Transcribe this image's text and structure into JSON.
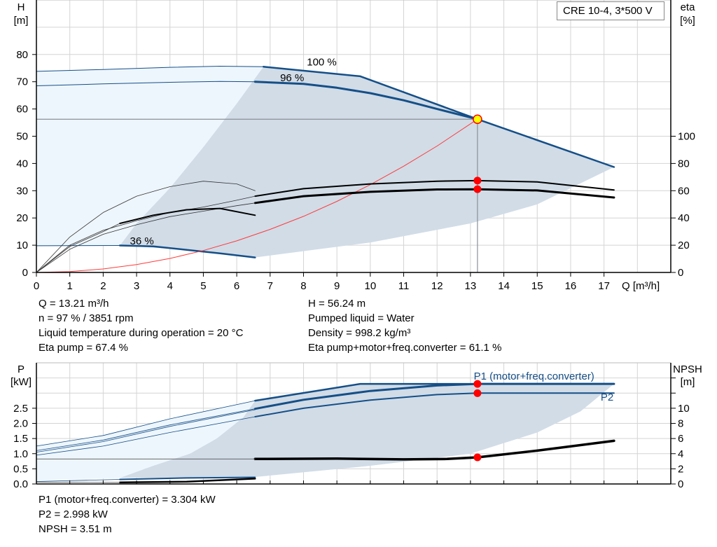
{
  "model_box": "CRE 10-4, 3*500 V",
  "colors": {
    "curve_blue": "#154f87",
    "shade_dark": "#d1dce7",
    "shade_light": "#eef6fd",
    "grid": "#d4d4d4",
    "marker_red": "#ff0000",
    "marker_yellow": "#ffff00",
    "system_curve": "#ff3b3b"
  },
  "info_top": {
    "left": [
      "Q = 13.21 m³/h",
      "n = 97 % / 3851 rpm",
      "Liquid temperature during operation = 20 °C",
      "Eta pump = 67.4 %"
    ],
    "right": [
      "H = 56.24 m",
      "Pumped liquid = Water",
      "Density = 998.2 kg/m³",
      "Eta pump+motor+freq.converter = 61.1 %"
    ]
  },
  "info_bottom": [
    "P1 (motor+freq.converter) = 3.304 kW",
    "P2 = 2.998 kW",
    "NPSH = 3.51 m"
  ],
  "chart_data": [
    {
      "type": "line",
      "title": "",
      "ylabel_left": [
        "H",
        "[m]"
      ],
      "ylabel_right": [
        "eta",
        "[%]"
      ],
      "xlabel": "Q [m³/h]",
      "xlim": [
        0,
        19
      ],
      "ylim": [
        0,
        100
      ],
      "eta_lim": [
        0,
        200
      ],
      "x_ticks": [
        0,
        1,
        2,
        3,
        4,
        5,
        6,
        7,
        8,
        9,
        10,
        11,
        12,
        13,
        14,
        15,
        16,
        17
      ],
      "y_ticks": [
        0,
        10,
        20,
        30,
        40,
        50,
        60,
        70,
        80
      ],
      "eta_ticks": [
        0,
        20,
        40,
        60,
        80,
        100
      ],
      "grid": true,
      "curve_labels": [
        {
          "text": "100 %",
          "x": 8.1,
          "y": 76
        },
        {
          "text": "96 %",
          "x": 7.3,
          "y": 70.2
        },
        {
          "text": "36 %",
          "x": 2.8,
          "y": 10.3
        }
      ],
      "regions": {
        "light": [
          [
            0,
            73.8
          ],
          [
            2,
            74.5
          ],
          [
            4,
            75.3
          ],
          [
            6.8,
            75.5
          ],
          [
            6,
            62
          ],
          [
            5,
            46
          ],
          [
            4,
            31
          ],
          [
            3,
            18
          ],
          [
            2.5,
            10
          ],
          [
            0,
            9.8
          ]
        ],
        "dark": [
          [
            2.5,
            9.9
          ],
          [
            4.5,
            8.3
          ],
          [
            6.55,
            5.5
          ],
          [
            10,
            11
          ],
          [
            13,
            18
          ],
          [
            15,
            25
          ],
          [
            17.3,
            38.7
          ],
          [
            13.21,
            56.24
          ],
          [
            9.7,
            72
          ],
          [
            6.8,
            75.5
          ],
          [
            6,
            62
          ],
          [
            5,
            46
          ],
          [
            4,
            31
          ],
          [
            3,
            18
          ]
        ]
      },
      "series": [
        {
          "id": "h-100",
          "axis": "H",
          "width": 2.5,
          "color": "#154f87",
          "points": [
            [
              6.8,
              75.5
            ],
            [
              9.7,
              72
            ],
            [
              13.21,
              56.24
            ],
            [
              17.3,
              38.7
            ]
          ]
        },
        {
          "id": "h-100-ext",
          "axis": "H",
          "width": 1,
          "color": "#154f87",
          "points": [
            [
              0,
              73.8
            ],
            [
              2,
              74.5
            ],
            [
              4,
              75.3
            ],
            [
              5.5,
              75.7
            ],
            [
              6.8,
              75.5
            ]
          ]
        },
        {
          "id": "h-96",
          "axis": "H",
          "width": 3,
          "color": "#154f87",
          "points": [
            [
              6.55,
              70
            ],
            [
              8,
              69.2
            ],
            [
              9,
              67.8
            ],
            [
              10,
              65.8
            ],
            [
              11,
              63.2
            ],
            [
              12,
              60
            ],
            [
              13.21,
              56.24
            ]
          ]
        },
        {
          "id": "h-96-ext",
          "axis": "H",
          "width": 1,
          "color": "#154f87",
          "points": [
            [
              0,
              68.5
            ],
            [
              2,
              69.2
            ],
            [
              4,
              69.8
            ],
            [
              5.5,
              70.1
            ],
            [
              6.55,
              70
            ]
          ]
        },
        {
          "id": "h-36",
          "axis": "H",
          "width": 2.5,
          "color": "#154f87",
          "points": [
            [
              2.5,
              9.9
            ],
            [
              3.5,
              9.6
            ],
            [
              4.5,
              8.3
            ],
            [
              5.5,
              7
            ],
            [
              6.55,
              5.5
            ]
          ]
        },
        {
          "id": "h-36-ext",
          "axis": "H",
          "width": 1,
          "color": "#154f87",
          "points": [
            [
              0,
              9.8
            ],
            [
              2.5,
              9.9
            ]
          ]
        },
        {
          "id": "system",
          "axis": "H",
          "width": 1,
          "color": "#ff3b3b",
          "points": [
            [
              0,
              0
            ],
            [
              1,
              0.32
            ],
            [
              2,
              1.29
            ],
            [
              3,
              2.9
            ],
            [
              4,
              5.15
            ],
            [
              5,
              8.05
            ],
            [
              6,
              11.6
            ],
            [
              7,
              15.8
            ],
            [
              8,
              20.6
            ],
            [
              9,
              26.1
            ],
            [
              10,
              32.2
            ],
            [
              11,
              39
            ],
            [
              12,
              46.4
            ],
            [
              13.21,
              56.24
            ]
          ]
        },
        {
          "id": "eta-pump",
          "axis": "eta",
          "width": 2,
          "color": "#000",
          "points": [
            [
              6.55,
              56
            ],
            [
              8,
              61.5
            ],
            [
              10,
              65
            ],
            [
              12,
              67
            ],
            [
              13.21,
              67.4
            ],
            [
              15,
              66.5
            ],
            [
              17.3,
              60.5
            ]
          ]
        },
        {
          "id": "eta-total",
          "axis": "eta",
          "width": 3,
          "color": "#000",
          "points": [
            [
              6.55,
              51
            ],
            [
              8,
              56
            ],
            [
              10,
              59.2
            ],
            [
              12,
              60.9
            ],
            [
              13.21,
              61.1
            ],
            [
              15,
              60.2
            ],
            [
              17.3,
              55
            ]
          ]
        },
        {
          "id": "eta-pump-ext",
          "axis": "eta",
          "width": 0.8,
          "color": "#333",
          "points": [
            [
              0,
              0
            ],
            [
              1,
              20
            ],
            [
              2,
              31
            ],
            [
              3,
              38
            ],
            [
              4,
              44
            ],
            [
              5,
              48
            ],
            [
              6,
              53
            ],
            [
              6.55,
              56
            ]
          ]
        },
        {
          "id": "eta-total-ext",
          "axis": "eta",
          "width": 0.8,
          "color": "#333",
          "points": [
            [
              0,
              0
            ],
            [
              1,
              17
            ],
            [
              2,
              28
            ],
            [
              3,
              35
            ],
            [
              4,
              41
            ],
            [
              5,
              45
            ],
            [
              6,
              49
            ],
            [
              6.55,
              51
            ]
          ]
        },
        {
          "id": "eta-low-a",
          "axis": "eta",
          "width": 2,
          "color": "#000",
          "points": [
            [
              2.5,
              36
            ],
            [
              3.5,
              42
            ],
            [
              4.5,
              46
            ],
            [
              5.5,
              47
            ],
            [
              6.55,
              42
            ]
          ]
        },
        {
          "id": "eta-low-a-ext",
          "axis": "eta",
          "width": 0.8,
          "color": "#333",
          "points": [
            [
              0,
              0
            ],
            [
              1,
              19
            ],
            [
              2,
              30
            ],
            [
              2.5,
              36
            ]
          ]
        },
        {
          "id": "eta-low-b",
          "axis": "eta",
          "width": 0.8,
          "color": "#333",
          "points": [
            [
              0,
              0
            ],
            [
              1,
              26
            ],
            [
              2,
              44
            ],
            [
              3,
              56
            ],
            [
              4,
              63
            ],
            [
              5,
              67
            ],
            [
              6,
              65
            ],
            [
              6.55,
              60
            ]
          ]
        }
      ],
      "operating_lines": {
        "q": 13.21,
        "h": 56.24
      },
      "markers": [
        {
          "axis": "H",
          "x": 13.21,
          "y": 56.24,
          "style": "duty"
        },
        {
          "axis": "eta",
          "x": 13.21,
          "y": 67.4,
          "style": "red"
        },
        {
          "axis": "eta",
          "x": 13.21,
          "y": 61.1,
          "style": "red"
        }
      ]
    },
    {
      "type": "line",
      "title": "",
      "ylabel_left": [
        "P",
        "[kW]"
      ],
      "ylabel_right": [
        "NPSH",
        "[m]"
      ],
      "xlim": [
        0,
        19
      ],
      "ylim": [
        0,
        4
      ],
      "npsh_lim": [
        0,
        16
      ],
      "y_ticks": [
        "0.0",
        "0.5",
        "1.0",
        "1.5",
        "2.0",
        "2.5"
      ],
      "npsh_ticks": [
        0,
        2,
        4,
        6,
        8,
        10
      ],
      "grid": true,
      "curve_labels": [
        {
          "text": "P1 (motor+freq.converter)",
          "x": 13.1,
          "y": 3.45
        },
        {
          "text": "P2",
          "x": 16.9,
          "y": 2.75
        }
      ],
      "regions": {
        "light": [
          [
            0,
            1.25
          ],
          [
            2,
            1.6
          ],
          [
            4,
            2.15
          ],
          [
            6.55,
            2.75
          ],
          [
            6.2,
            2.2
          ],
          [
            5.4,
            1.5
          ],
          [
            4.6,
            1.0
          ],
          [
            3.5,
            0.6
          ],
          [
            2.5,
            0.2
          ],
          [
            0,
            0.1
          ]
        ],
        "dark": [
          [
            2.5,
            0.2
          ],
          [
            6.55,
            0.23
          ],
          [
            10,
            0.6
          ],
          [
            13,
            1.0
          ],
          [
            15,
            1.7
          ],
          [
            16.3,
            2.4
          ],
          [
            17.3,
            3.304
          ],
          [
            9.7,
            3.304
          ],
          [
            6.55,
            2.75
          ],
          [
            6.2,
            2.2
          ],
          [
            5.4,
            1.5
          ],
          [
            4.6,
            1.0
          ],
          [
            3.5,
            0.6
          ]
        ]
      },
      "series": [
        {
          "id": "p-max",
          "axis": "P",
          "width": 2.5,
          "color": "#154f87",
          "points": [
            [
              6.55,
              2.75
            ],
            [
              9.7,
              3.304
            ],
            [
              17.3,
              3.304
            ]
          ]
        },
        {
          "id": "p1",
          "axis": "P",
          "width": 3,
          "color": "#154f87",
          "points": [
            [
              6.55,
              2.48
            ],
            [
              8,
              2.78
            ],
            [
              10,
              3.07
            ],
            [
              12,
              3.25
            ],
            [
              13.21,
              3.304
            ],
            [
              17.3,
              3.304
            ]
          ]
        },
        {
          "id": "p2",
          "axis": "P",
          "width": 2,
          "color": "#154f87",
          "points": [
            [
              6.55,
              2.22
            ],
            [
              8,
              2.5
            ],
            [
              10,
              2.77
            ],
            [
              12,
              2.95
            ],
            [
              13.21,
              2.998
            ],
            [
              17.3,
              2.998
            ]
          ]
        },
        {
          "id": "p-max-ext",
          "axis": "P",
          "width": 0.8,
          "color": "#154f87",
          "points": [
            [
              0,
              1.25
            ],
            [
              2,
              1.6
            ],
            [
              4,
              2.15
            ],
            [
              6.55,
              2.75
            ]
          ]
        },
        {
          "id": "p1-ext",
          "axis": "P",
          "width": 0.8,
          "color": "#154f87",
          "points": [
            [
              0,
              1.1
            ],
            [
              2,
              1.45
            ],
            [
              4,
              1.95
            ],
            [
              6.55,
              2.48
            ]
          ]
        },
        {
          "id": "p1-ext2",
          "axis": "P",
          "width": 0.8,
          "color": "#154f87",
          "points": [
            [
              0,
              1.05
            ],
            [
              2,
              1.4
            ],
            [
              4,
              1.9
            ],
            [
              6.55,
              2.45
            ]
          ]
        },
        {
          "id": "p2-ext",
          "axis": "P",
          "width": 0.8,
          "color": "#154f87",
          "points": [
            [
              0,
              0.95
            ],
            [
              2,
              1.25
            ],
            [
              4,
              1.7
            ],
            [
              6.55,
              2.22
            ]
          ]
        },
        {
          "id": "p-low",
          "axis": "P",
          "width": 2,
          "color": "#154f87",
          "points": [
            [
              2.5,
              0.15
            ],
            [
              4.5,
              0.2
            ],
            [
              6.55,
              0.22
            ]
          ]
        },
        {
          "id": "p-low-ext",
          "axis": "P",
          "width": 0.8,
          "color": "#154f87",
          "points": [
            [
              0,
              0.08
            ],
            [
              2.5,
              0.15
            ]
          ]
        },
        {
          "id": "npsh-low",
          "axis": "NPSH",
          "width": 2.5,
          "color": "#000",
          "points": [
            [
              2.5,
              0.2
            ],
            [
              4.5,
              0.3
            ],
            [
              6.55,
              0.7
            ]
          ]
        },
        {
          "id": "npsh-low-ext",
          "axis": "NPSH",
          "width": 0.8,
          "color": "#555",
          "points": [
            [
              0,
              0.25
            ],
            [
              2.5,
              0.2
            ]
          ]
        },
        {
          "id": "npsh",
          "axis": "NPSH",
          "width": 3.5,
          "color": "#000",
          "points": [
            [
              6.55,
              3.3
            ],
            [
              9,
              3.35
            ],
            [
              11,
              3.25
            ],
            [
              12.3,
              3.3
            ],
            [
              13.21,
              3.51
            ],
            [
              15,
              4.4
            ],
            [
              17.3,
              5.7
            ]
          ]
        },
        {
          "id": "npsh-ext",
          "axis": "NPSH",
          "width": 0.8,
          "color": "#555",
          "points": [
            [
              0,
              3.3
            ],
            [
              6.55,
              3.3
            ]
          ]
        }
      ],
      "markers": [
        {
          "axis": "P",
          "x": 13.21,
          "y": 3.304,
          "style": "red"
        },
        {
          "axis": "P",
          "x": 13.21,
          "y": 2.998,
          "style": "red"
        },
        {
          "axis": "NPSH",
          "x": 13.21,
          "y": 3.51,
          "style": "red"
        }
      ]
    }
  ]
}
